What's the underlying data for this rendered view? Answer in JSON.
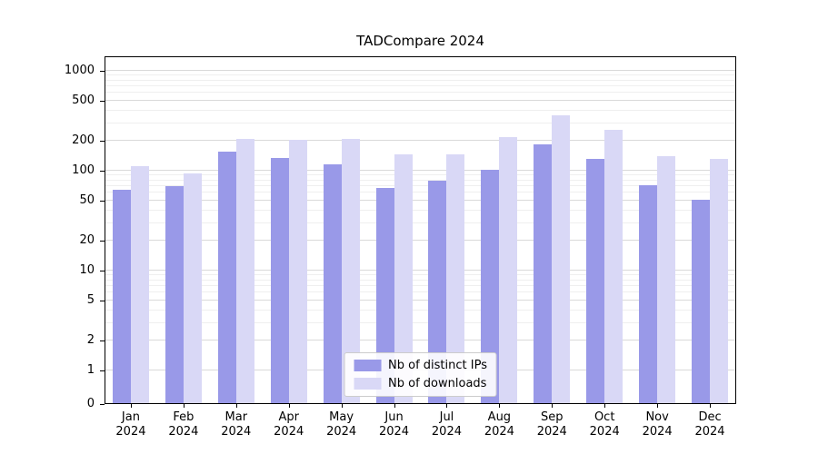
{
  "title": "TADCompare 2024",
  "legend": {
    "items": [
      {
        "label": "Nb of distinct IPs"
      },
      {
        "label": "Nb of downloads"
      }
    ]
  },
  "chart_data": {
    "type": "bar",
    "title": "TADCompare 2024",
    "categories": [
      "Jan 2024",
      "Feb 2024",
      "Mar 2024",
      "Apr 2024",
      "May 2024",
      "Jun 2024",
      "Jul 2024",
      "Aug 2024",
      "Sep 2024",
      "Oct 2024",
      "Nov 2024",
      "Dec 2024"
    ],
    "series": [
      {
        "name": "Nb of distinct IPs",
        "color": "#9999e8",
        "values": [
          65,
          70,
          155,
          133,
          115,
          67,
          80,
          102,
          183,
          130,
          71,
          51
        ]
      },
      {
        "name": "Nb of downloads",
        "color": "#d9d8f6",
        "values": [
          110,
          93,
          210,
          205,
          210,
          145,
          145,
          215,
          360,
          255,
          140,
          130
        ]
      }
    ],
    "xlabel": "",
    "ylabel": "",
    "yscale": "symlog",
    "yticks": [
      0,
      1,
      2,
      5,
      10,
      20,
      50,
      100,
      200,
      500,
      1000
    ],
    "ylim": [
      0,
      1000
    ],
    "grid": true,
    "legend_position": "lower center"
  }
}
